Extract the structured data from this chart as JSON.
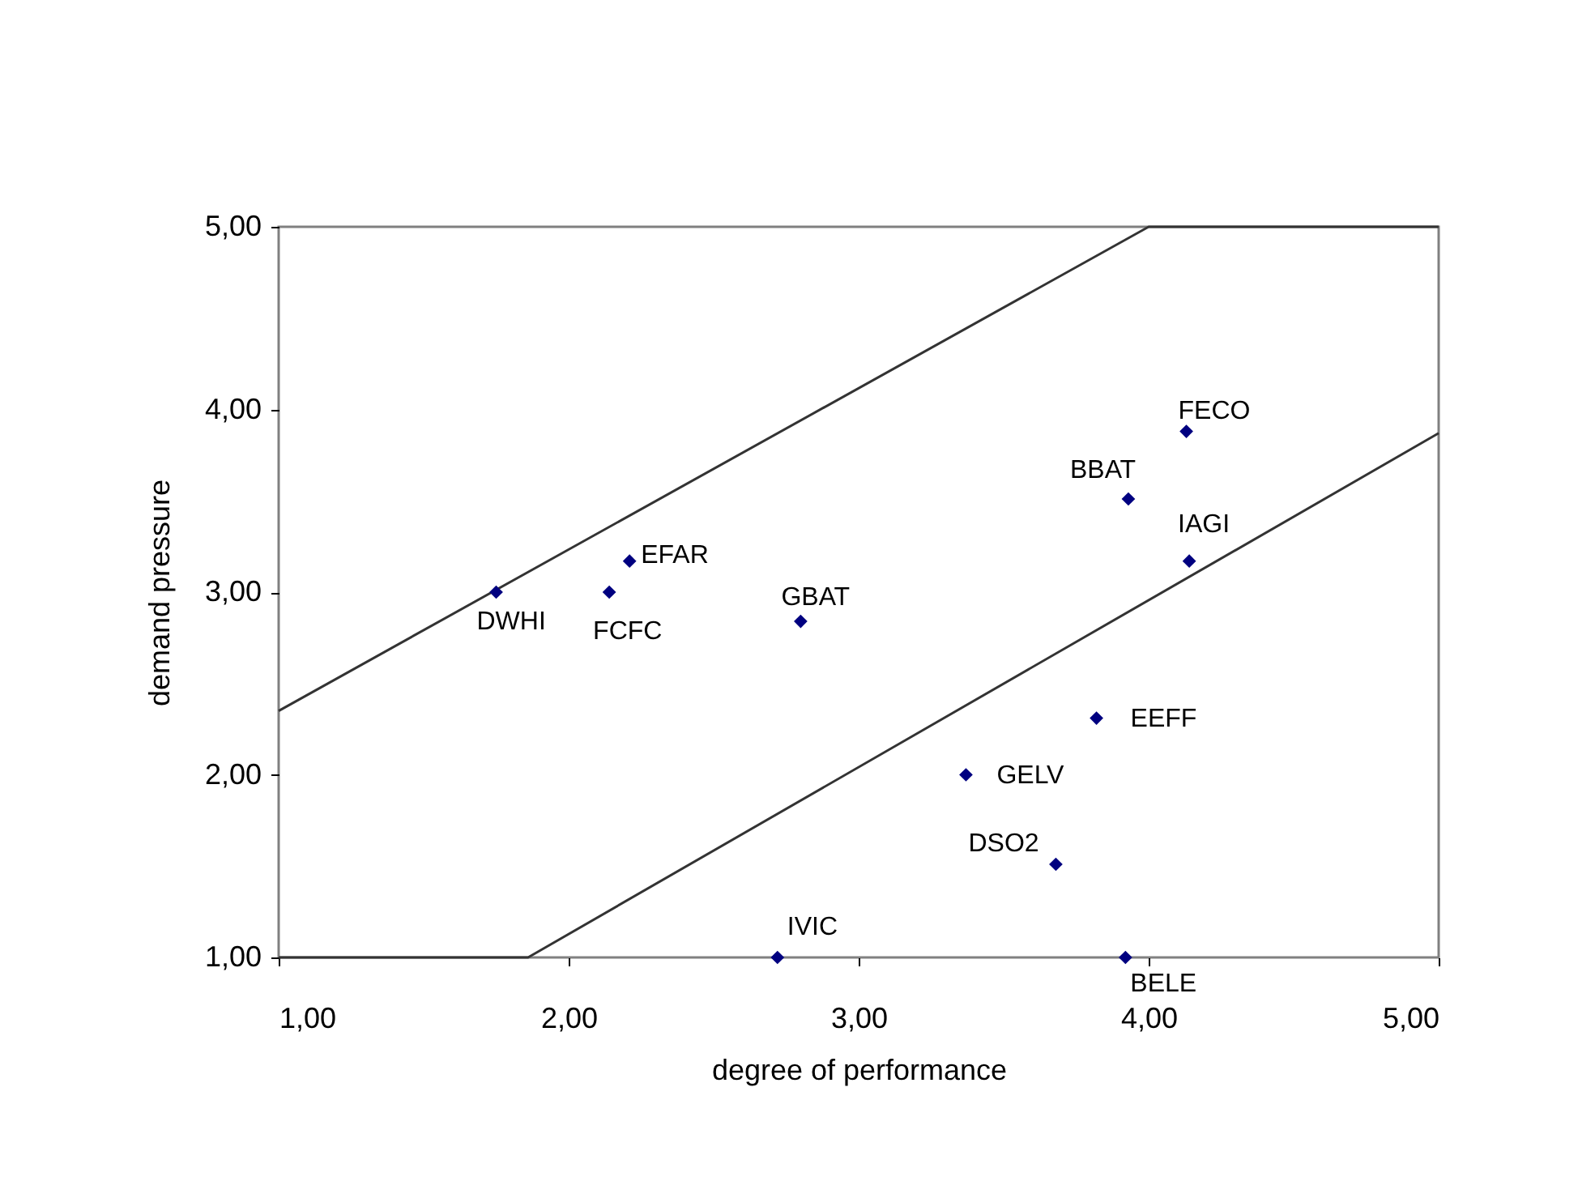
{
  "chart_data": {
    "type": "scatter",
    "xlabel": "degree of performance",
    "ylabel": "demand pressure",
    "xlim": [
      1,
      5
    ],
    "ylim": [
      1,
      5
    ],
    "xticks": [
      {
        "value": 1,
        "label": "1,00"
      },
      {
        "value": 2,
        "label": "2,00"
      },
      {
        "value": 3,
        "label": "3,00"
      },
      {
        "value": 4,
        "label": "4,00"
      },
      {
        "value": 5,
        "label": "5,00"
      }
    ],
    "yticks": [
      {
        "value": 1,
        "label": "1,00"
      },
      {
        "value": 2,
        "label": "2,00"
      },
      {
        "value": 3,
        "label": "3,00"
      },
      {
        "value": 4,
        "label": "4,00"
      },
      {
        "value": 5,
        "label": "5,00"
      }
    ],
    "grid": false,
    "marker": "diamond",
    "series": [
      {
        "color": "#000080",
        "x": [
          4.13,
          3.93,
          4.14,
          2.21,
          1.75,
          2.14,
          2.8,
          3.82,
          3.37,
          3.68,
          2.72,
          3.92
        ],
        "values": [
          3.88,
          3.51,
          3.17,
          3.17,
          3.0,
          3.0,
          2.84,
          2.31,
          2.0,
          1.51,
          1.0,
          1.0
        ]
      },
      {
        "type": "line",
        "color": "#333333",
        "marker": "none",
        "line_style": "solid",
        "x": [
          1,
          4.0,
          5
        ],
        "values": [
          2.35,
          5,
          5
        ]
      },
      {
        "type": "line",
        "color": "#333333",
        "marker": "none",
        "line_style": "solid",
        "x": [
          1,
          1.86,
          5
        ],
        "values": [
          1,
          1,
          3.87
        ]
      }
    ],
    "annotations": [
      {
        "text": "FECO",
        "x": 4.13,
        "y": 3.88
      },
      {
        "text": "BBAT",
        "x": 3.93,
        "y": 3.51
      },
      {
        "text": "IAGI",
        "x": 4.14,
        "y": 3.17
      },
      {
        "text": "EFAR",
        "x": 2.21,
        "y": 3.17
      },
      {
        "text": "DWHI",
        "x": 1.75,
        "y": 3.0
      },
      {
        "text": "FCFC",
        "x": 2.14,
        "y": 3.0
      },
      {
        "text": "GBAT",
        "x": 2.8,
        "y": 2.84
      },
      {
        "text": "EEFF",
        "x": 3.82,
        "y": 2.31
      },
      {
        "text": "GELV",
        "x": 3.37,
        "y": 2.0
      },
      {
        "text": "DSO2",
        "x": 3.68,
        "y": 1.51
      },
      {
        "text": "IVIC",
        "x": 2.72,
        "y": 1.0
      },
      {
        "text": "BELE",
        "x": 3.92,
        "y": 1.0
      }
    ]
  }
}
